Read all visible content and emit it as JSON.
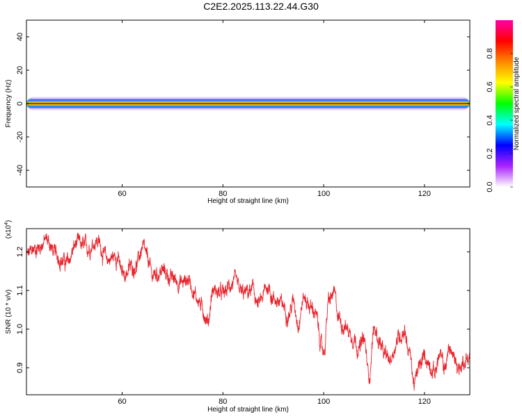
{
  "title": "C2E2.2025.113.22.44.G30",
  "chart_data": [
    {
      "type": "heatmap",
      "xlabel": "Height of straight line (km)",
      "ylabel": "Frequency (Hz)",
      "xlim": [
        41,
        129
      ],
      "ylim": [
        -50,
        50
      ],
      "xticks": [
        60,
        80,
        100,
        120
      ],
      "yticks": [
        40,
        20,
        0,
        -20,
        -40
      ],
      "description_band_center_hz": 0,
      "colorbar": {
        "label": "Normalized spectral amplitude",
        "range": [
          0,
          1
        ],
        "ticks": [
          0.0,
          0.2,
          0.4,
          0.6,
          0.8
        ],
        "colors": [
          "#ffffff",
          "#aa22ff",
          "#0000ff",
          "#00ffff",
          "#00ff00",
          "#ffff00",
          "#ff8800",
          "#ff0000",
          "#ff00aa"
        ]
      }
    },
    {
      "type": "line",
      "xlabel": "Height of straight line (km)",
      "ylabel": "SNR (10 * v/v)",
      "yscale_note": "(x10",
      "yscale_exp": "4",
      "xlim": [
        41,
        129
      ],
      "ylim": [
        0.83,
        1.26
      ],
      "xticks": [
        60,
        80,
        100,
        120
      ],
      "yticks": [
        1.2,
        1.1,
        1.0,
        0.9
      ],
      "ytick_labels": [
        "1.2",
        "1.1",
        "1.0",
        "0.9"
      ],
      "color": "#e8222a",
      "anchors": [
        [
          41,
          1.19
        ],
        [
          43,
          1.21
        ],
        [
          45,
          1.23
        ],
        [
          47,
          1.19
        ],
        [
          49,
          1.17
        ],
        [
          51,
          1.22
        ],
        [
          53,
          1.21
        ],
        [
          55,
          1.23
        ],
        [
          57,
          1.18
        ],
        [
          59,
          1.19
        ],
        [
          60,
          1.14
        ],
        [
          62,
          1.16
        ],
        [
          63,
          1.17
        ],
        [
          64,
          1.21
        ],
        [
          65,
          1.18
        ],
        [
          66,
          1.14
        ],
        [
          68,
          1.15
        ],
        [
          70,
          1.13
        ],
        [
          72,
          1.12
        ],
        [
          73,
          1.13
        ],
        [
          75,
          1.08
        ],
        [
          76,
          1.05
        ],
        [
          77,
          1.02
        ],
        [
          78,
          1.1
        ],
        [
          80,
          1.09
        ],
        [
          82,
          1.12
        ],
        [
          84,
          1.09
        ],
        [
          86,
          1.1
        ],
        [
          87,
          1.06
        ],
        [
          89,
          1.11
        ],
        [
          90,
          1.08
        ],
        [
          92,
          1.06
        ],
        [
          93,
          1.04
        ],
        [
          94,
          1.07
        ],
        [
          95,
          1.02
        ],
        [
          96,
          1.08
        ],
        [
          98,
          1.05
        ],
        [
          100,
          0.94
        ],
        [
          101,
          1.07
        ],
        [
          102,
          1.09
        ],
        [
          103,
          1.03
        ],
        [
          104,
          1.01
        ],
        [
          106,
          0.98
        ],
        [
          107,
          0.95
        ],
        [
          108,
          0.97
        ],
        [
          109,
          0.88
        ],
        [
          110,
          1.0
        ],
        [
          111,
          0.97
        ],
        [
          112,
          0.93
        ],
        [
          113,
          0.92
        ],
        [
          115,
          0.98
        ],
        [
          116,
          1.0
        ],
        [
          117,
          0.94
        ],
        [
          118,
          0.86
        ],
        [
          119,
          0.9
        ],
        [
          120,
          0.93
        ],
        [
          121,
          0.91
        ],
        [
          122,
          0.89
        ],
        [
          123,
          0.93
        ],
        [
          124,
          0.9
        ],
        [
          125,
          0.95
        ],
        [
          126,
          0.92
        ],
        [
          127,
          0.9
        ],
        [
          128,
          0.92
        ],
        [
          129,
          0.93
        ]
      ]
    }
  ]
}
